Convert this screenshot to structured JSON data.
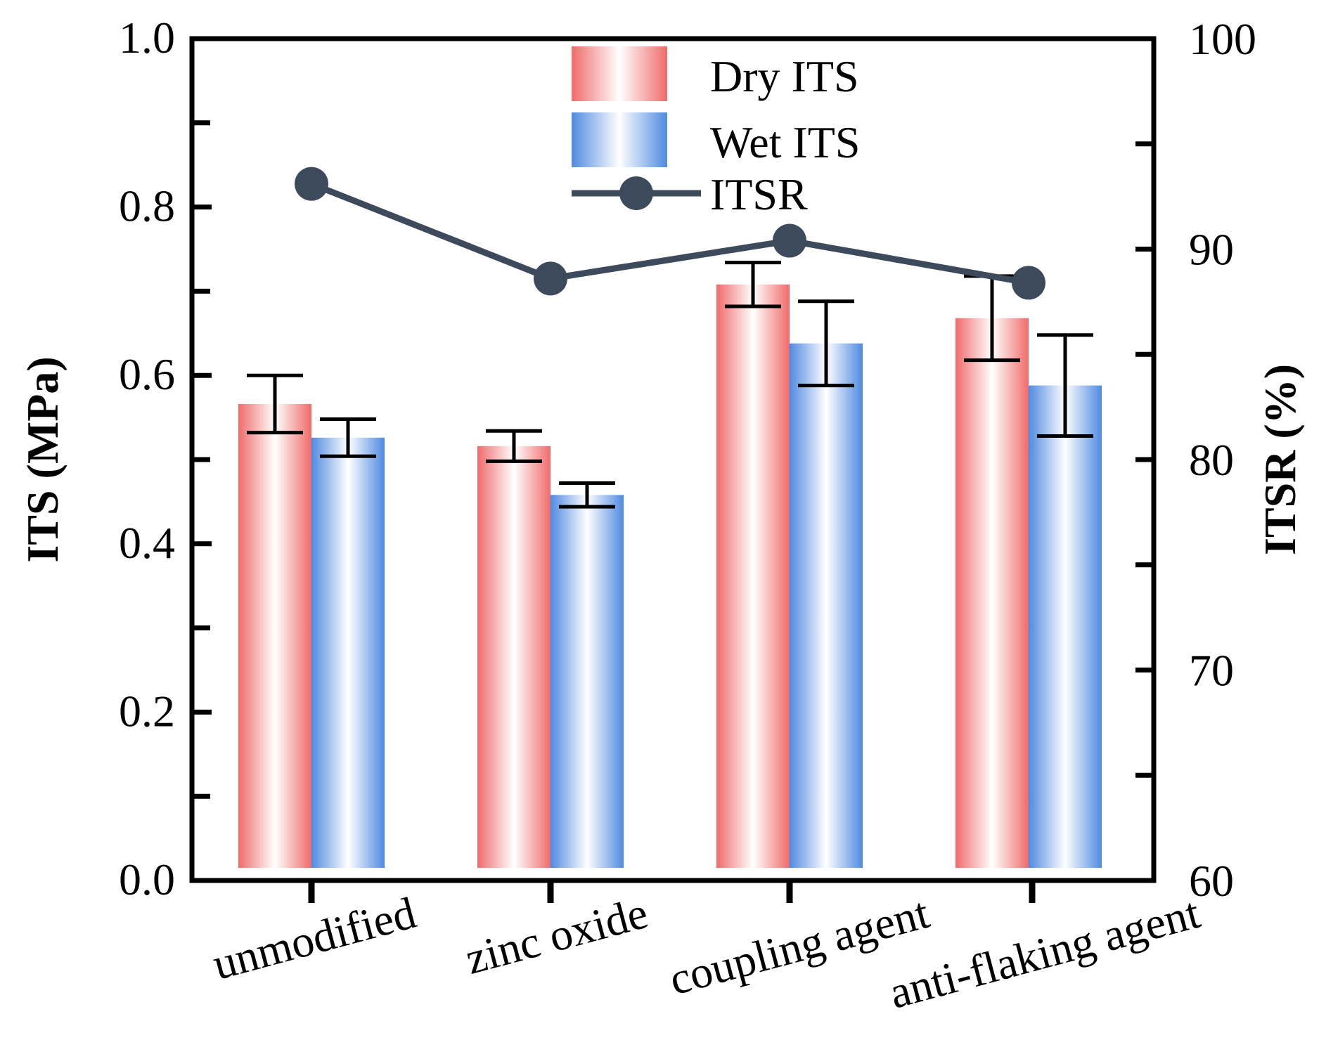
{
  "chart_data": {
    "type": "bar",
    "categories": [
      "unmodified",
      "zinc oxide",
      "coupling agent",
      "anti-flaking agent"
    ],
    "series": [
      {
        "name": "Dry ITS",
        "axis": "left",
        "values": [
          0.566,
          0.516,
          0.708,
          0.668
        ],
        "error": [
          0.034,
          0.018,
          0.026,
          0.05
        ],
        "color": "#f06b6b"
      },
      {
        "name": "Wet ITS",
        "axis": "left",
        "values": [
          0.526,
          0.458,
          0.638,
          0.588
        ],
        "error": [
          0.022,
          0.014,
          0.05,
          0.06
        ],
        "color": "#4f8ae0"
      },
      {
        "name": "ITSR",
        "axis": "right",
        "type": "line",
        "values": [
          93.1,
          88.6,
          90.4,
          88.4
        ],
        "color": "#3d4a5c"
      }
    ],
    "ylabel": "ITS (MPa)",
    "y2label": "ITSR (%)",
    "xlabel": "",
    "ylim": [
      0,
      1.0
    ],
    "y2lim": [
      60,
      100
    ],
    "yticks": [
      "0.0",
      "0.2",
      "0.4",
      "0.6",
      "0.8",
      "1.0"
    ],
    "y2ticks": [
      "60",
      "70",
      "80",
      "90",
      "100"
    ],
    "legend_position": "top-center"
  }
}
